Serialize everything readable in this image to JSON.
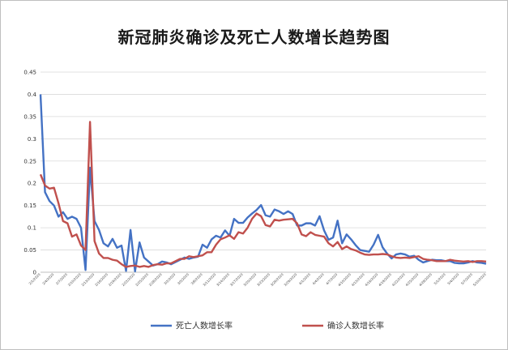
{
  "chart_data": {
    "type": "line",
    "title": "新冠肺炎确诊及死亡人数增长趋势图",
    "xlabel": "",
    "ylabel": "",
    "ylim": [
      0,
      0.45
    ],
    "yticks": [
      "0",
      "0.05",
      "0.1",
      "0.15",
      "0.2",
      "0.25",
      "0.3",
      "0.35",
      "0.4",
      "0.45"
    ],
    "grid": true,
    "legend_position": "bottom",
    "x": [
      "2/1/2020",
      "2/2/2020",
      "2/3/2020",
      "2/4/2020",
      "2/5/2020",
      "2/6/2020",
      "2/7/2020",
      "2/8/2020",
      "2/9/2020",
      "2/10/2020",
      "2/11/2020",
      "2/12/2020",
      "2/13/2020",
      "2/14/2020",
      "2/15/2020",
      "2/16/2020",
      "2/17/2020",
      "2/18/2020",
      "2/19/2020",
      "2/20/2020",
      "2/21/2020",
      "2/22/2020",
      "2/23/2020",
      "2/24/2020",
      "2/25/2020",
      "2/26/2020",
      "2/27/2020",
      "2/28/2020",
      "2/29/2020",
      "3/1/2020",
      "3/2/2020",
      "3/3/2020",
      "3/4/2020",
      "3/5/2020",
      "3/6/2020",
      "3/7/2020",
      "3/8/2020",
      "3/9/2020",
      "3/10/2020",
      "3/11/2020",
      "3/12/2020",
      "3/13/2020",
      "3/14/2020",
      "3/15/2020",
      "3/16/2020",
      "3/17/2020",
      "3/18/2020",
      "3/19/2020",
      "3/20/2020",
      "3/21/2020",
      "3/22/2020",
      "3/23/2020",
      "3/24/2020",
      "3/25/2020",
      "3/26/2020",
      "3/27/2020",
      "3/28/2020",
      "3/29/2020",
      "3/30/2020",
      "3/31/2020",
      "4/1/2020",
      "4/2/2020",
      "4/3/2020",
      "4/4/2020",
      "4/5/2020",
      "4/6/2020",
      "4/7/2020",
      "4/8/2020",
      "4/9/2020",
      "4/10/2020",
      "4/11/2020",
      "4/12/2020",
      "4/13/2020",
      "4/14/2020",
      "4/15/2020",
      "4/16/2020",
      "4/17/2020",
      "4/18/2020",
      "4/19/2020",
      "4/20/2020",
      "4/21/2020",
      "4/22/2020",
      "4/23/2020",
      "4/24/2020",
      "4/25/2020",
      "4/26/2020",
      "4/27/2020",
      "4/28/2020",
      "4/29/2020",
      "4/30/2020",
      "5/1/2020",
      "5/2/2020",
      "5/3/2020",
      "5/4/2020",
      "5/5/2020",
      "5/6/2020",
      "5/7/2020",
      "5/8/2020",
      "5/9/2020",
      "5/10/2020"
    ],
    "series": [
      {
        "name": "死亡人数增长率",
        "color": "#4472c4",
        "values": [
          0.4,
          0.18,
          0.16,
          0.15,
          0.125,
          0.135,
          0.12,
          0.125,
          0.12,
          0.1,
          0.005,
          0.235,
          0.115,
          0.095,
          0.065,
          0.058,
          0.075,
          0.055,
          0.06,
          0.003,
          0.095,
          0.002,
          0.067,
          0.033,
          0.024,
          0.015,
          0.018,
          0.024,
          0.022,
          0.018,
          0.023,
          0.028,
          0.033,
          0.03,
          0.033,
          0.035,
          0.062,
          0.055,
          0.074,
          0.082,
          0.078,
          0.094,
          0.082,
          0.12,
          0.111,
          0.111,
          0.123,
          0.132,
          0.14,
          0.151,
          0.128,
          0.125,
          0.141,
          0.137,
          0.131,
          0.137,
          0.131,
          0.105,
          0.105,
          0.11,
          0.11,
          0.105,
          0.126,
          0.094,
          0.073,
          0.078,
          0.116,
          0.065,
          0.085,
          0.074,
          0.061,
          0.05,
          0.048,
          0.046,
          0.062,
          0.084,
          0.056,
          0.042,
          0.031,
          0.04,
          0.042,
          0.04,
          0.035,
          0.037,
          0.028,
          0.022,
          0.025,
          0.028,
          0.027,
          0.027,
          0.025,
          0.025,
          0.021,
          0.02,
          0.02,
          0.022,
          0.025,
          0.022,
          0.021,
          0.019
        ]
      },
      {
        "name": "确诊人数增长率",
        "color": "#c0504d",
        "values": [
          0.22,
          0.195,
          0.188,
          0.19,
          0.155,
          0.115,
          0.11,
          0.08,
          0.085,
          0.06,
          0.05,
          0.338,
          0.07,
          0.042,
          0.032,
          0.032,
          0.028,
          0.026,
          0.018,
          0.012,
          0.014,
          0.015,
          0.012,
          0.014,
          0.012,
          0.016,
          0.018,
          0.017,
          0.02,
          0.02,
          0.025,
          0.03,
          0.03,
          0.036,
          0.034,
          0.036,
          0.038,
          0.045,
          0.045,
          0.062,
          0.074,
          0.078,
          0.083,
          0.075,
          0.09,
          0.087,
          0.1,
          0.12,
          0.132,
          0.126,
          0.106,
          0.103,
          0.118,
          0.116,
          0.118,
          0.119,
          0.12,
          0.11,
          0.085,
          0.081,
          0.09,
          0.084,
          0.082,
          0.08,
          0.065,
          0.058,
          0.068,
          0.052,
          0.058,
          0.052,
          0.049,
          0.044,
          0.04,
          0.039,
          0.04,
          0.04,
          0.041,
          0.04,
          0.036,
          0.033,
          0.032,
          0.033,
          0.032,
          0.034,
          0.036,
          0.03,
          0.028,
          0.027,
          0.025,
          0.025,
          0.025,
          0.028,
          0.026,
          0.025,
          0.024,
          0.025,
          0.023,
          0.025,
          0.025,
          0.024
        ]
      }
    ]
  }
}
